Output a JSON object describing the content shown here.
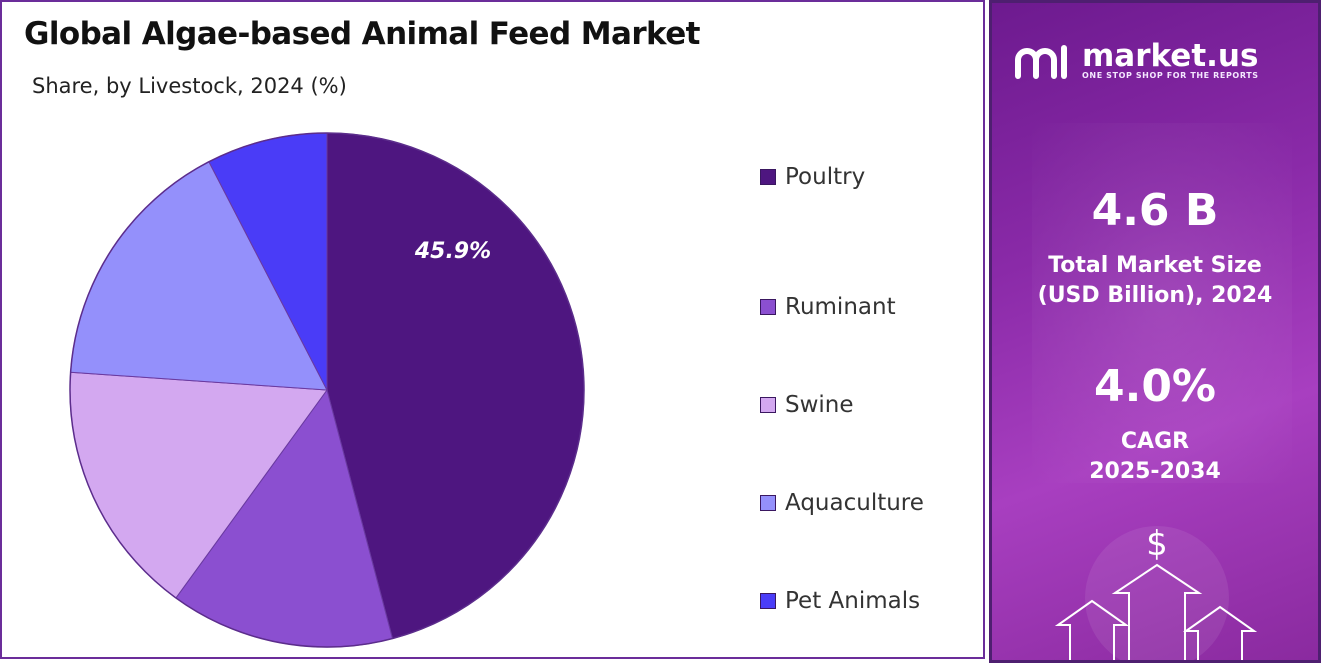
{
  "header": {
    "title": "Global Algae-based Animal Feed Market",
    "subtitle": "Share, by Livestock, 2024 (%)"
  },
  "chart_data": {
    "type": "pie",
    "title": "Global Algae-based Animal Feed Market",
    "subtitle": "Share, by Livestock, 2024 (%)",
    "categories": [
      "Poultry",
      "Ruminant",
      "Swine",
      "Aquaculture",
      "Pet Animals"
    ],
    "values": [
      45.9,
      14.1,
      16.1,
      16.3,
      7.6
    ],
    "colors": [
      "#4e1680",
      "#8b4fd0",
      "#d3a8f0",
      "#9490fb",
      "#4a3cf7"
    ],
    "data_labels": [
      {
        "category": "Poultry",
        "text": "45.9%"
      }
    ],
    "legend_position": "right"
  },
  "sidebar": {
    "brand_name": "market.us",
    "brand_tagline": "ONE STOP SHOP FOR THE REPORTS",
    "market_size_value": "4.6 B",
    "market_size_label_line1": "Total Market Size",
    "market_size_label_line2": "(USD Billion), 2024",
    "cagr_value": "4.0%",
    "cagr_label_line1": "CAGR",
    "cagr_label_line2": "2025-2034",
    "deco_symbol": "$"
  }
}
